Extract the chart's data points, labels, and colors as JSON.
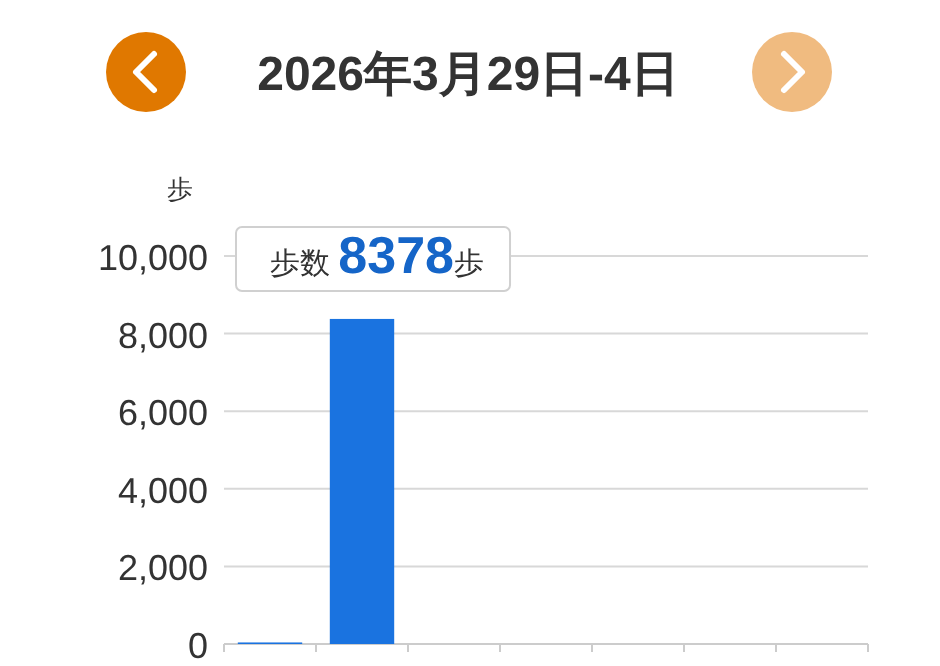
{
  "chart_data": {
    "type": "bar",
    "title": "2026年3月29日-4日",
    "ylabel": "歩",
    "categories": [
      null,
      null,
      null,
      null,
      null,
      null,
      null
    ],
    "values": [
      40,
      8378,
      null,
      null,
      null,
      null,
      null
    ],
    "color": "#1a73e0",
    "ylim": [
      0,
      10000
    ],
    "yticks": [
      {
        "value": 0,
        "label": "0"
      },
      {
        "value": 2000,
        "label": "2,000"
      },
      {
        "value": 4000,
        "label": "4,000"
      },
      {
        "value": 6000,
        "label": "6,000"
      },
      {
        "value": 8000,
        "label": "8,000"
      },
      {
        "value": 10000,
        "label": "10,000"
      }
    ],
    "grid": "y",
    "annotations": [
      {
        "text": "歩数 **8378**歩",
        "y": 8378
      }
    ]
  }
}
